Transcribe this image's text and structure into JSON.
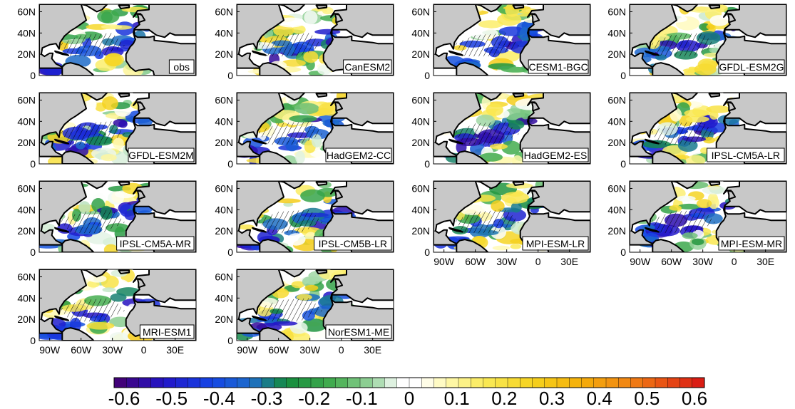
{
  "panels": [
    {
      "label": "obs"
    },
    {
      "label": "CanESM2"
    },
    {
      "label": "CESM1-BGC"
    },
    {
      "label": "GFDL-ESM2G"
    },
    {
      "label": "GFDL-ESM2M"
    },
    {
      "label": "HadGEM2-CC"
    },
    {
      "label": "HadGEM2-ES"
    },
    {
      "label": "IPSL-CM5A-LR"
    },
    {
      "label": "IPSL-CM5A-MR"
    },
    {
      "label": "IPSL-CM5B-LR"
    },
    {
      "label": "MPI-ESM-LR"
    },
    {
      "label": "MPI-ESM-MR"
    },
    {
      "label": "MRI-ESM1"
    },
    {
      "label": "NorESM1-ME"
    }
  ],
  "lat_ticks": [
    "60N",
    "40N",
    "20N",
    "0"
  ],
  "lon_ticks": [
    "90W",
    "60W",
    "30W",
    "0",
    "30E"
  ],
  "colorbar": {
    "ticks": [
      "-0.6",
      "-0.5",
      "-0.4",
      "-0.3",
      "-0.2",
      "-0.1",
      "0",
      "0.1",
      "0.2",
      "0.3",
      "0.4",
      "0.5",
      "0.6"
    ],
    "range": [
      -0.6,
      0.6
    ],
    "n_colors": 48
  },
  "colors": {
    "land": "#c8c8c8",
    "coast": "#000000",
    "hatch": "#000000"
  }
}
